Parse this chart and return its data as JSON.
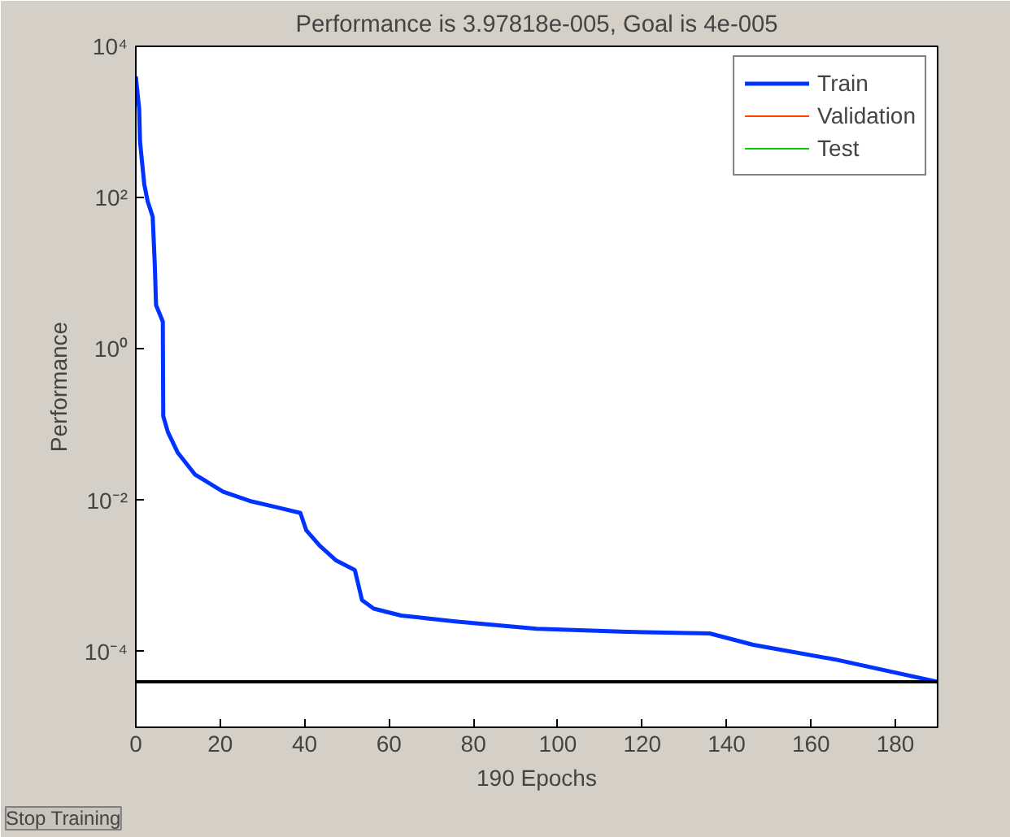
{
  "chart_data": {
    "type": "line",
    "title": "Performance is 3.97818e-005, Goal is 4e-005",
    "xlabel": "190 Epochs",
    "ylabel": "Performance",
    "x": [
      0,
      0.8,
      1,
      2,
      2.8,
      4,
      4.5,
      4.8,
      6.4,
      6.5,
      7.6,
      9.9,
      14,
      20.7,
      27,
      33.3,
      39,
      40.4,
      43.6,
      47.5,
      51.9,
      53.6,
      56.4,
      62.9,
      75.7,
      95,
      120.6,
      136,
      146.3,
      165.6,
      190
    ],
    "series": [
      {
        "name": "Train",
        "color": "#0033ff",
        "values": [
          4000,
          1500,
          550,
          150,
          90,
          56,
          13,
          3.8,
          2.3,
          0.13,
          0.08,
          0.043,
          0.022,
          0.013,
          0.0098,
          0.0081,
          0.0068,
          0.004,
          0.0025,
          0.0016,
          0.0012,
          0.00048,
          0.00037,
          0.0003,
          0.00025,
          0.0002,
          0.00018,
          0.000174,
          0.000123,
          7.9e-05,
          3.98e-05
        ]
      },
      {
        "name": "Validation",
        "color": "#ff4400",
        "values": [
          null,
          null,
          null,
          null,
          null,
          null,
          null,
          null,
          null,
          null,
          null,
          null,
          null,
          null,
          null,
          null,
          null,
          null,
          null,
          null,
          null,
          null,
          null,
          null,
          null,
          null,
          null,
          null,
          null,
          null,
          null
        ]
      },
      {
        "name": "Test",
        "color": "#00cc00",
        "values": [
          null,
          null,
          null,
          null,
          null,
          null,
          null,
          null,
          null,
          null,
          null,
          null,
          null,
          null,
          null,
          null,
          null,
          null,
          null,
          null,
          null,
          null,
          null,
          null,
          null,
          null,
          null,
          null,
          null,
          null,
          null
        ]
      }
    ],
    "log": "y",
    "xlim": [
      0,
      190
    ],
    "xticks": [
      0,
      20,
      40,
      60,
      80,
      100,
      120,
      140,
      160,
      180
    ],
    "ylim": [
      1e-05,
      10000
    ],
    "yticks": [
      {
        "value": 0.0001,
        "label": "10⁻⁴"
      },
      {
        "value": 0.01,
        "label": "10⁻²"
      },
      {
        "value": 1,
        "label": "10⁰"
      },
      {
        "value": 100,
        "label": "10²"
      },
      {
        "value": 10000,
        "label": "10⁴"
      }
    ],
    "ref_lines": [
      {
        "axis": "y",
        "value": 4e-05,
        "color": "#000000"
      }
    ],
    "legend": "top right",
    "grid": false,
    "annotations": [
      "Stop Training"
    ]
  }
}
